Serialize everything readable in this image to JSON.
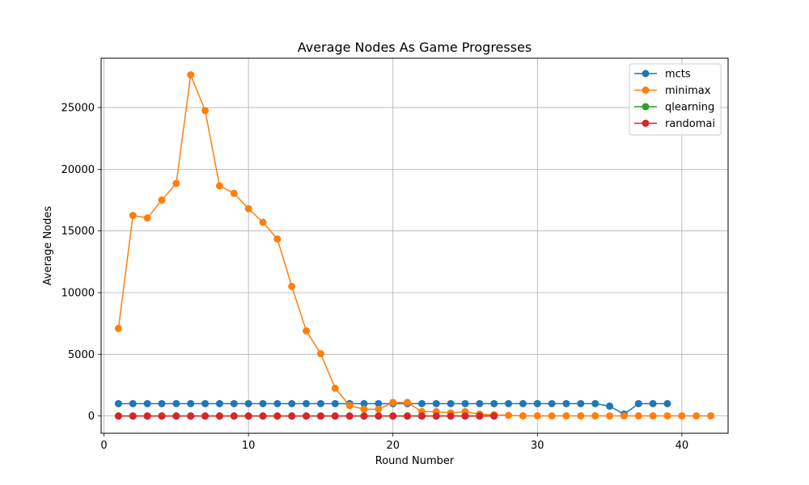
{
  "chart_data": {
    "type": "line",
    "title": "Average Nodes As Game Progresses",
    "xlabel": "Round Number",
    "ylabel": "Average Nodes",
    "xlim": [
      -0.2,
      43.2
    ],
    "ylim": [
      -1400,
      29000
    ],
    "x_ticks": [
      0,
      10,
      20,
      30,
      40
    ],
    "y_ticks": [
      0,
      5000,
      10000,
      15000,
      20000,
      25000
    ],
    "grid": true,
    "legend_position": "top-right",
    "series": [
      {
        "name": "mcts",
        "color": "#1f77b4",
        "x": [
          1,
          2,
          3,
          4,
          5,
          6,
          7,
          8,
          9,
          10,
          11,
          12,
          13,
          14,
          15,
          16,
          17,
          18,
          19,
          20,
          21,
          22,
          23,
          24,
          25,
          26,
          27,
          28,
          29,
          30,
          31,
          32,
          33,
          34,
          35,
          36,
          37,
          38,
          39
        ],
        "values": [
          1000,
          1000,
          1000,
          1000,
          1000,
          1000,
          1000,
          1000,
          1000,
          1000,
          1000,
          1000,
          1000,
          1000,
          1000,
          1000,
          1000,
          1000,
          1000,
          1000,
          1000,
          1000,
          1000,
          1000,
          1000,
          1000,
          1000,
          1000,
          1000,
          1000,
          1000,
          1000,
          1000,
          1000,
          800,
          150,
          1000,
          1000,
          1000
        ]
      },
      {
        "name": "minimax",
        "color": "#ff7f0e",
        "x": [
          1,
          2,
          3,
          4,
          5,
          6,
          7,
          8,
          9,
          10,
          11,
          12,
          13,
          14,
          15,
          16,
          17,
          18,
          19,
          20,
          21,
          22,
          23,
          24,
          25,
          26,
          27,
          28,
          29,
          30,
          31,
          32,
          33,
          34,
          35,
          36,
          37,
          38,
          39,
          40,
          41,
          42
        ],
        "values": [
          7100,
          16250,
          16050,
          17500,
          18850,
          27650,
          24750,
          18650,
          18050,
          16800,
          15700,
          14350,
          10500,
          6900,
          5050,
          2250,
          850,
          550,
          550,
          1100,
          1100,
          350,
          350,
          250,
          350,
          150,
          100,
          50,
          10,
          10,
          10,
          10,
          10,
          10,
          10,
          10,
          10,
          10,
          10,
          10,
          10,
          10
        ]
      },
      {
        "name": "qlearning",
        "color": "#2ca02c",
        "x": [
          1,
          2,
          3,
          4,
          5,
          6,
          7,
          8,
          9,
          10,
          11,
          12,
          13,
          14,
          15,
          16,
          17,
          18,
          19,
          20,
          21,
          22,
          23,
          24,
          25,
          26,
          27
        ],
        "values": [
          0,
          0,
          0,
          0,
          0,
          0,
          0,
          0,
          0,
          0,
          0,
          0,
          0,
          0,
          0,
          0,
          0,
          0,
          0,
          0,
          0,
          0,
          0,
          0,
          0,
          0,
          0
        ]
      },
      {
        "name": "randomai",
        "color": "#d62728",
        "x": [
          1,
          2,
          3,
          4,
          5,
          6,
          7,
          8,
          9,
          10,
          11,
          12,
          13,
          14,
          15,
          16,
          17,
          18,
          19,
          20,
          21,
          22,
          23,
          24,
          25,
          26,
          27
        ],
        "values": [
          0,
          0,
          0,
          0,
          0,
          0,
          0,
          0,
          0,
          0,
          0,
          0,
          0,
          0,
          0,
          0,
          0,
          0,
          0,
          0,
          0,
          0,
          0,
          0,
          0,
          0,
          0
        ]
      }
    ]
  }
}
